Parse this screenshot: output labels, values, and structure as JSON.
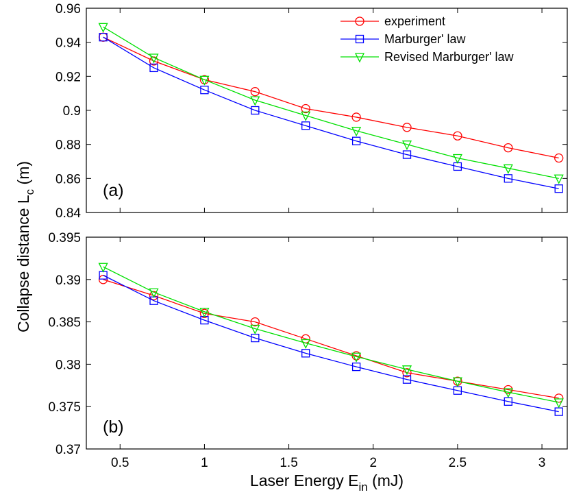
{
  "chart_data": {
    "type": "line",
    "xlabel": {
      "main": "Laser Energy E",
      "sub": "in",
      "unit": " (mJ)"
    },
    "ylabel": {
      "main": "Collapse distance L",
      "sub": "c",
      "unit": " (m)"
    },
    "xlim": [
      0.3,
      3.15
    ],
    "xticks": [
      "0.5",
      "1",
      "1.5",
      "2",
      "2.5",
      "3"
    ],
    "x": [
      0.4,
      0.7,
      1.0,
      1.3,
      1.6,
      1.9,
      2.2,
      2.5,
      2.8,
      3.1
    ],
    "series_styles": [
      {
        "name": "experiment",
        "color": "#ff0000",
        "marker": "circle"
      },
      {
        "name": "Marburger' law",
        "color": "#0000ff",
        "marker": "square"
      },
      {
        "name": "Revised Marburger' law",
        "color": "#00e000",
        "marker": "triangle-down"
      }
    ],
    "legend_placement": "top-right",
    "grid": false,
    "panels": [
      {
        "label": "(a)",
        "ylim": [
          0.84,
          0.96
        ],
        "yticks": [
          "0.84",
          "0.86",
          "0.88",
          "0.9",
          "0.92",
          "0.94",
          "0.96"
        ],
        "series": [
          {
            "name": "experiment",
            "values": [
              0.943,
              0.929,
              0.918,
              0.911,
              0.901,
              0.896,
              0.89,
              0.885,
              0.878,
              0.872
            ]
          },
          {
            "name": "Marburger' law",
            "values": [
              0.943,
              0.925,
              0.912,
              0.9,
              0.891,
              0.882,
              0.874,
              0.867,
              0.86,
              0.854
            ]
          },
          {
            "name": "Revised Marburger' law",
            "values": [
              0.949,
              0.931,
              0.918,
              0.906,
              0.897,
              0.888,
              0.88,
              0.872,
              0.866,
              0.86
            ]
          }
        ]
      },
      {
        "label": "(b)",
        "ylim": [
          0.37,
          0.395
        ],
        "yticks": [
          "0.37",
          "0.375",
          "0.38",
          "0.385",
          "0.39",
          "0.395"
        ],
        "series": [
          {
            "name": "experiment",
            "values": [
              0.39,
              0.3881,
              0.386,
              0.385,
              0.383,
              0.381,
              0.379,
              0.378,
              0.377,
              0.376
            ]
          },
          {
            "name": "Marburger' law",
            "values": [
              0.3905,
              0.3875,
              0.3852,
              0.3831,
              0.3813,
              0.3797,
              0.3782,
              0.3769,
              0.3756,
              0.3744
            ]
          },
          {
            "name": "Revised Marburger' law",
            "values": [
              0.3915,
              0.3885,
              0.3862,
              0.3842,
              0.3825,
              0.3809,
              0.3794,
              0.378,
              0.3767,
              0.3755
            ]
          }
        ]
      }
    ]
  }
}
